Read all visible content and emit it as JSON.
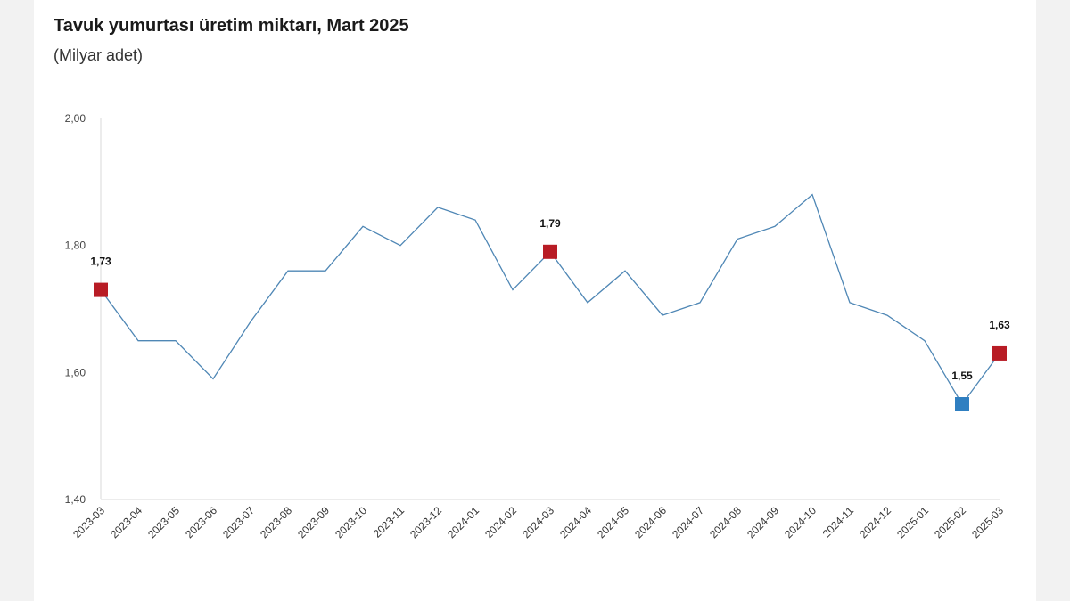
{
  "chart_data": {
    "type": "line",
    "title": "Tavuk yumurtası üretim miktarı, Mart 2025",
    "subtitle": "(Milyar adet)",
    "ylim": [
      1.4,
      2.0
    ],
    "yticks": [
      "1,40",
      "1,60",
      "1,80",
      "2,00"
    ],
    "ytick_values": [
      1.4,
      1.6,
      1.8,
      2.0
    ],
    "categories": [
      "2023-03",
      "2023-04",
      "2023-05",
      "2023-06",
      "2023-07",
      "2023-08",
      "2023-09",
      "2023-10",
      "2023-11",
      "2023-12",
      "2024-01",
      "2024-02",
      "2024-03",
      "2024-04",
      "2024-05",
      "2024-06",
      "2024-07",
      "2024-08",
      "2024-09",
      "2024-10",
      "2024-11",
      "2024-12",
      "2025-01",
      "2025-02",
      "2025-03"
    ],
    "series": [
      {
        "values": [
          1.73,
          1.65,
          1.65,
          1.59,
          1.68,
          1.76,
          1.76,
          1.83,
          1.8,
          1.86,
          1.84,
          1.73,
          1.79,
          1.71,
          1.76,
          1.69,
          1.71,
          1.81,
          1.83,
          1.88,
          1.71,
          1.69,
          1.65,
          1.55,
          1.63
        ]
      }
    ],
    "highlights": [
      {
        "index": 0,
        "label": "1,73",
        "color": "#b81c25"
      },
      {
        "index": 12,
        "label": "1,79",
        "color": "#b81c25"
      },
      {
        "index": 23,
        "label": "1,55",
        "color": "#2f7fc1"
      },
      {
        "index": 24,
        "label": "1,63",
        "color": "#b81c25"
      }
    ],
    "line_color": "#4f87b5",
    "grid": false,
    "legend": "none"
  }
}
